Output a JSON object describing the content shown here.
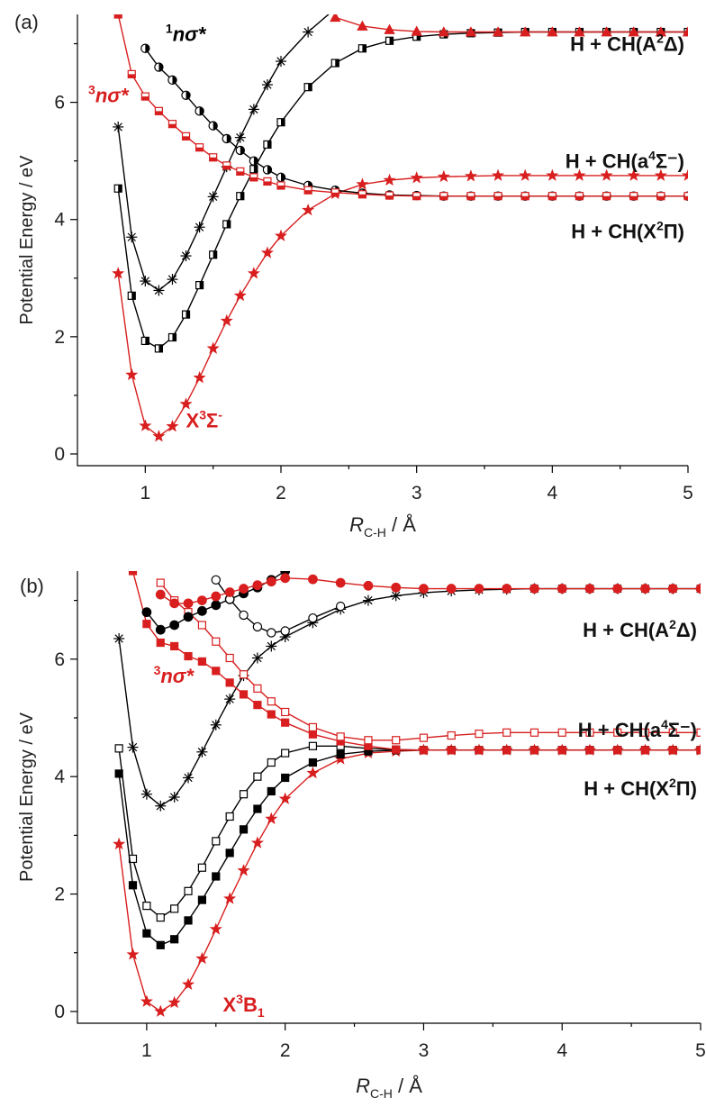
{
  "chart_data": [
    {
      "type": "line",
      "panel_label": "(a)",
      "xlabel": "R",
      "xlabel_sub": "C-H",
      "xlabel_unit": " / Å",
      "ylabel": "Potential Energy / eV",
      "xlim": [
        0.5,
        5
      ],
      "ylim": [
        -0.2,
        7.5
      ],
      "xticks": [
        1,
        2,
        3,
        4,
        5
      ],
      "yticks": [
        0,
        2,
        4,
        6
      ],
      "grid": false,
      "asymptote_labels": [
        {
          "pre": "H + CH(A",
          "sup": "2",
          "post": "Δ)",
          "y": 7.0
        },
        {
          "pre": "H + CH(a",
          "sup": "4",
          "post": "Σ⁻)",
          "y": 5.0
        },
        {
          "pre": "H + CH(X",
          "sup": "2",
          "post": "Π)",
          "y": 3.8
        }
      ],
      "state_labels": [
        {
          "sup": "1",
          "main": "nσ*",
          "color": "#000000",
          "italic_n": true,
          "x": 1.15,
          "y": 7.05
        },
        {
          "sup": "3",
          "main": "nσ*",
          "color": "#d81e1e",
          "italic_n": true,
          "x": 0.58,
          "y": 6.0
        },
        {
          "pre": "X",
          "sup": "3",
          "main": "Σ",
          "sup2": "-",
          "color": "#d81e1e",
          "x": 1.3,
          "y": 0.45
        }
      ],
      "series": [
        {
          "color": "#d81e1e",
          "marker": "star",
          "x": [
            0.8,
            0.9,
            1.0,
            1.1,
            1.2,
            1.3,
            1.4,
            1.5,
            1.6,
            1.7,
            1.8,
            1.9,
            2.0,
            2.2,
            2.4,
            2.6,
            2.8,
            3.0,
            3.2,
            3.4,
            3.6,
            3.8,
            4.0,
            4.2,
            4.4,
            4.6,
            4.8,
            5.0
          ],
          "y": [
            3.08,
            1.35,
            0.48,
            0.3,
            0.47,
            0.85,
            1.3,
            1.8,
            2.27,
            2.7,
            3.08,
            3.43,
            3.72,
            4.16,
            4.44,
            4.6,
            4.67,
            4.71,
            4.73,
            4.74,
            4.75,
            4.75,
            4.75,
            4.75,
            4.75,
            4.75,
            4.75,
            4.75
          ]
        },
        {
          "color": "#000000",
          "marker": "asterisk",
          "x": [
            0.8,
            0.9,
            1.0,
            1.1,
            1.2,
            1.3,
            1.4,
            1.5,
            1.6,
            1.7,
            1.8,
            1.9,
            2.0,
            2.2,
            2.4
          ],
          "y": [
            5.58,
            3.7,
            2.95,
            2.79,
            2.98,
            3.38,
            3.87,
            4.39,
            4.9,
            5.4,
            5.88,
            6.3,
            6.7,
            7.2,
            7.6
          ]
        },
        {
          "color": "#000000",
          "marker": "square-half-v",
          "x": [
            0.8,
            0.9,
            1.0,
            1.1,
            1.2,
            1.3,
            1.4,
            1.5,
            1.6,
            1.7,
            1.8,
            1.9,
            2.0,
            2.2,
            2.4,
            2.6,
            2.8,
            3.0,
            3.2,
            3.4,
            3.6,
            3.8,
            4.0,
            4.2,
            4.4,
            4.6,
            4.8,
            5.0
          ],
          "y": [
            4.53,
            2.7,
            1.93,
            1.8,
            1.99,
            2.38,
            2.88,
            3.4,
            3.92,
            4.4,
            4.86,
            5.28,
            5.66,
            6.26,
            6.67,
            6.92,
            7.05,
            7.12,
            7.16,
            7.18,
            7.19,
            7.2,
            7.2,
            7.2,
            7.2,
            7.2,
            7.2,
            7.2
          ]
        },
        {
          "color": "#000000",
          "marker": "circle-half",
          "x": [
            1.0,
            1.1,
            1.2,
            1.3,
            1.4,
            1.5,
            1.6,
            1.7,
            1.8,
            1.9,
            2.0,
            2.2,
            2.4,
            2.6,
            2.8,
            3.0,
            3.2,
            3.4,
            3.6,
            3.8,
            4.0,
            4.2,
            4.4,
            4.6,
            4.8,
            5.0
          ],
          "y": [
            6.92,
            6.6,
            6.38,
            6.12,
            5.85,
            5.6,
            5.38,
            5.18,
            5.0,
            4.85,
            4.72,
            4.58,
            4.5,
            4.45,
            4.42,
            4.41,
            4.4,
            4.4,
            4.4,
            4.4,
            4.4,
            4.4,
            4.4,
            4.4,
            4.4,
            4.4
          ]
        },
        {
          "color": "#d81e1e",
          "marker": "square-half-h",
          "x": [
            0.8,
            0.9,
            1.0,
            1.1,
            1.2,
            1.3,
            1.4,
            1.5,
            1.6,
            1.7,
            1.8,
            1.9,
            2.0,
            2.2,
            2.4,
            2.6,
            2.8,
            3.0,
            3.2,
            3.4,
            3.6,
            3.8,
            4.0,
            4.2,
            4.4,
            4.6,
            4.8,
            5.0
          ],
          "y": [
            7.5,
            6.48,
            6.1,
            5.85,
            5.63,
            5.42,
            5.23,
            5.06,
            4.92,
            4.82,
            4.72,
            4.65,
            4.58,
            4.5,
            4.46,
            4.43,
            4.41,
            4.4,
            4.4,
            4.4,
            4.4,
            4.4,
            4.4,
            4.4,
            4.4,
            4.4,
            4.4,
            4.4
          ]
        },
        {
          "color": "#d81e1e",
          "marker": "triangle",
          "x": [
            2.4,
            2.6,
            2.8,
            3.0,
            3.2,
            3.4,
            3.6,
            3.8,
            4.0,
            4.2,
            4.4,
            4.6,
            4.8,
            5.0
          ],
          "y": [
            7.45,
            7.3,
            7.24,
            7.21,
            7.2,
            7.2,
            7.2,
            7.2,
            7.2,
            7.2,
            7.2,
            7.2,
            7.2,
            7.2
          ]
        }
      ]
    },
    {
      "type": "line",
      "panel_label": "(b)",
      "xlabel": "R",
      "xlabel_sub": "C-H",
      "xlabel_unit": " / Å",
      "ylabel": "Potential Energy / eV",
      "xlim": [
        0.5,
        5
      ],
      "ylim": [
        -0.2,
        7.5
      ],
      "xticks": [
        1,
        2,
        3,
        4,
        5
      ],
      "yticks": [
        0,
        2,
        4,
        6
      ],
      "grid": false,
      "asymptote_labels": [
        {
          "pre": "H + CH(A",
          "sup": "2",
          "post": "Δ)",
          "y": 6.5
        },
        {
          "pre": "H + CH(a",
          "sup": "4",
          "post": "Σ⁻)",
          "y": 4.8
        },
        {
          "pre": "H + CH(X",
          "sup": "2",
          "post": "Π)",
          "y": 3.8
        }
      ],
      "state_labels": [
        {
          "sup": "3",
          "main": "nσ*",
          "color": "#d81e1e",
          "italic_n": true,
          "x": 1.05,
          "y": 5.6
        },
        {
          "pre": "X",
          "sup": "3",
          "main": "B",
          "sub": "1",
          "color": "#d81e1e",
          "x": 1.55,
          "y": -0.0
        }
      ],
      "series": [
        {
          "color": "#d81e1e",
          "marker": "star",
          "x": [
            0.8,
            0.9,
            1.0,
            1.1,
            1.2,
            1.3,
            1.4,
            1.5,
            1.6,
            1.7,
            1.8,
            1.9,
            2.0,
            2.2,
            2.4,
            2.6,
            2.8,
            3.0,
            3.2,
            3.4,
            3.6,
            3.8,
            4.0,
            4.2,
            4.4,
            4.6,
            4.8,
            5.0
          ],
          "y": [
            2.85,
            0.97,
            0.17,
            0.0,
            0.15,
            0.46,
            0.9,
            1.4,
            1.92,
            2.4,
            2.87,
            3.28,
            3.62,
            4.06,
            4.3,
            4.4,
            4.43,
            4.45,
            4.45,
            4.45,
            4.45,
            4.45,
            4.45,
            4.45,
            4.45,
            4.45,
            4.45,
            4.45
          ]
        },
        {
          "color": "#000000",
          "marker": "asterisk",
          "x": [
            0.8,
            0.9,
            1.0,
            1.1,
            1.2,
            1.3,
            1.4,
            1.5,
            1.6,
            1.7,
            1.8,
            1.9,
            2.0,
            2.2,
            2.4,
            2.6,
            2.8,
            3.0,
            3.2,
            3.4,
            3.6,
            3.8,
            4.0,
            4.2,
            4.4,
            4.6,
            4.8,
            5.0
          ],
          "y": [
            6.35,
            4.5,
            3.7,
            3.5,
            3.65,
            3.98,
            4.42,
            4.88,
            5.32,
            5.72,
            6.02,
            6.22,
            6.38,
            6.62,
            6.85,
            7.0,
            7.08,
            7.13,
            7.16,
            7.18,
            7.19,
            7.2,
            7.2,
            7.2,
            7.2,
            7.2,
            7.2,
            7.2
          ]
        },
        {
          "color": "#000000",
          "marker": "square-open",
          "x": [
            0.8,
            0.9,
            1.0,
            1.1,
            1.2,
            1.3,
            1.4,
            1.5,
            1.6,
            1.7,
            1.8,
            1.9,
            2.0,
            2.2,
            2.4,
            2.6,
            2.8,
            3.0,
            3.2,
            3.4,
            3.6,
            3.8,
            4.0,
            4.2,
            4.4,
            4.6,
            4.8,
            5.0
          ],
          "y": [
            4.48,
            2.6,
            1.8,
            1.6,
            1.75,
            2.05,
            2.45,
            2.9,
            3.32,
            3.7,
            4.0,
            4.24,
            4.4,
            4.52,
            4.52,
            4.48,
            4.46,
            4.45,
            4.45,
            4.45,
            4.45,
            4.45,
            4.45,
            4.45,
            4.45,
            4.45,
            4.45,
            4.45
          ]
        },
        {
          "color": "#000000",
          "marker": "square-filled",
          "x": [
            0.8,
            0.9,
            1.0,
            1.1,
            1.2,
            1.3,
            1.4,
            1.5,
            1.6,
            1.7,
            1.8,
            1.9,
            2.0,
            2.2,
            2.4,
            2.6,
            2.8,
            3.0,
            3.2,
            3.4,
            3.6,
            3.8,
            4.0,
            4.2,
            4.4,
            4.6,
            4.8,
            5.0
          ],
          "y": [
            4.05,
            2.15,
            1.33,
            1.13,
            1.23,
            1.55,
            1.9,
            2.3,
            2.7,
            3.1,
            3.45,
            3.75,
            3.98,
            4.24,
            4.38,
            4.43,
            4.45,
            4.45,
            4.45,
            4.45,
            4.45,
            4.45,
            4.45,
            4.45,
            4.45,
            4.45,
            4.45,
            4.45
          ]
        },
        {
          "color": "#d81e1e",
          "marker": "square-filled",
          "x": [
            0.9,
            1.0,
            1.1,
            1.2,
            1.3,
            1.4,
            1.5,
            1.6,
            1.7,
            1.8,
            1.9,
            2.0,
            2.2,
            2.4,
            2.6,
            2.8,
            3.0,
            3.2,
            3.4,
            3.6,
            3.8,
            4.0,
            4.2,
            4.4,
            4.6,
            4.8,
            5.0
          ],
          "y": [
            7.5,
            6.6,
            6.28,
            6.22,
            6.05,
            5.96,
            5.8,
            5.6,
            5.4,
            5.22,
            5.06,
            4.92,
            4.72,
            4.6,
            4.52,
            4.46,
            4.45,
            4.45,
            4.45,
            4.45,
            4.45,
            4.45,
            4.45,
            4.45,
            4.45,
            4.45,
            4.45
          ]
        },
        {
          "color": "#d81e1e",
          "marker": "square-open",
          "x": [
            1.1,
            1.2,
            1.3,
            1.4,
            1.5,
            1.6,
            1.7,
            1.8,
            1.9,
            2.0,
            2.2,
            2.4,
            2.6,
            2.8,
            3.0,
            3.2,
            3.4,
            3.6,
            3.8,
            4.0,
            4.2,
            4.4,
            4.6,
            4.8,
            5.0
          ],
          "y": [
            7.3,
            7.0,
            6.8,
            6.58,
            6.3,
            6.02,
            5.74,
            5.5,
            5.28,
            5.1,
            4.84,
            4.68,
            4.62,
            4.62,
            4.66,
            4.7,
            4.73,
            4.75,
            4.75,
            4.75,
            4.75,
            4.75,
            4.75,
            4.75,
            4.75
          ]
        },
        {
          "color": "#000000",
          "marker": "circle-filled",
          "x": [
            1.0,
            1.1,
            1.2,
            1.3,
            1.4,
            1.5,
            1.6,
            1.7,
            1.8,
            1.9,
            2.0
          ],
          "y": [
            6.8,
            6.5,
            6.58,
            6.72,
            6.82,
            6.92,
            7.02,
            7.12,
            7.22,
            7.35,
            7.5
          ]
        },
        {
          "color": "#000000",
          "marker": "circle-open",
          "x": [
            1.5,
            1.6,
            1.7,
            1.8,
            1.9,
            2.0,
            2.2,
            2.4
          ],
          "y": [
            7.35,
            7.02,
            6.75,
            6.55,
            6.45,
            6.48,
            6.7,
            6.9
          ]
        },
        {
          "color": "#d81e1e",
          "marker": "circle-filled",
          "x": [
            1.1,
            1.2,
            1.3,
            1.4,
            1.5,
            1.6,
            1.7,
            1.8,
            1.9,
            2.0,
            2.2,
            2.4,
            2.6,
            2.8,
            3.0,
            3.2,
            3.4,
            3.6,
            3.8,
            4.0,
            4.2,
            4.4,
            4.6,
            4.8,
            5.0
          ],
          "y": [
            7.1,
            6.95,
            6.95,
            7.0,
            7.07,
            7.14,
            7.2,
            7.26,
            7.32,
            7.38,
            7.36,
            7.3,
            7.25,
            7.22,
            7.2,
            7.2,
            7.2,
            7.2,
            7.2,
            7.2,
            7.2,
            7.2,
            7.2,
            7.2,
            7.2
          ]
        }
      ]
    }
  ]
}
